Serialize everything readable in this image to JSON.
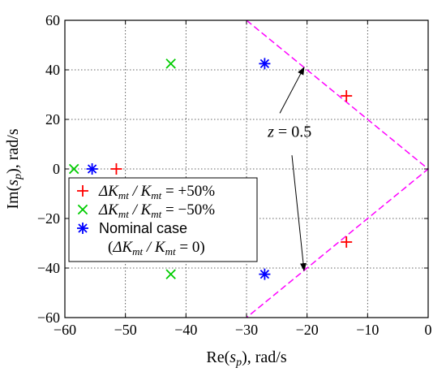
{
  "chart_data": {
    "type": "scatter",
    "xlim": [
      -60,
      0
    ],
    "ylim": [
      -60,
      60
    ],
    "xticks": [
      -60,
      -50,
      -40,
      -30,
      -20,
      -10,
      0
    ],
    "yticks": [
      -60,
      -40,
      -20,
      0,
      20,
      40,
      60
    ],
    "xtick_labels": [
      "−60",
      "−50",
      "−40",
      "−30",
      "−20",
      "−10",
      "0"
    ],
    "ytick_labels": [
      "−60",
      "−40",
      "−20",
      "0",
      "20",
      "40",
      "60"
    ],
    "grid": true,
    "legend_position": "lower-left",
    "xlabel": {
      "main": "Re(",
      "sym": "s",
      "sub": "p",
      "rest": "), rad/s"
    },
    "ylabel": {
      "main": "Im(",
      "sym": "s",
      "sub": "p",
      "rest": "), rad/s"
    },
    "series": [
      {
        "legend": {
          "delta": "ΔK",
          "sub": "mt",
          "mid": " / K",
          "sub2": "mt",
          "value": " = +50%"
        },
        "color": "#ff0000",
        "marker": "plus",
        "points": [
          [
            -51.5,
            0
          ],
          [
            -13.5,
            29.5
          ],
          [
            -13.5,
            -29.5
          ]
        ]
      },
      {
        "legend": {
          "delta": "ΔK",
          "sub": "mt",
          "mid": " / K",
          "sub2": "mt",
          "value": " = −50%"
        },
        "color": "#00cc00",
        "marker": "cross",
        "points": [
          [
            -58.5,
            0
          ],
          [
            -42.5,
            42.5
          ],
          [
            -42.5,
            -42.5
          ]
        ]
      },
      {
        "legend": {
          "line1": "Nominal case",
          "line2a": "(ΔK",
          "sub": "mt",
          "mid": " / K",
          "sub2": "mt",
          "line2b": " = 0)"
        },
        "color": "#0000ff",
        "marker": "asterisk",
        "points": [
          [
            -55.5,
            0
          ],
          [
            -27,
            42.5
          ],
          [
            -27,
            -42.5
          ]
        ]
      }
    ],
    "damping_line": {
      "color": "#ff00ff",
      "points": [
        [
          -30,
          60
        ],
        [
          0,
          0
        ],
        [
          -30,
          -60
        ]
      ]
    },
    "annotation": {
      "label_main": "z",
      "label_rest": " = 0.5",
      "at": [
        -26.5,
        15
      ],
      "arrow_targets": [
        [
          -20.5,
          41
        ],
        [
          -20.5,
          -41
        ]
      ],
      "arrow_starts": [
        [
          -24.5,
          22.5
        ],
        [
          -22.5,
          5.5
        ]
      ]
    }
  }
}
